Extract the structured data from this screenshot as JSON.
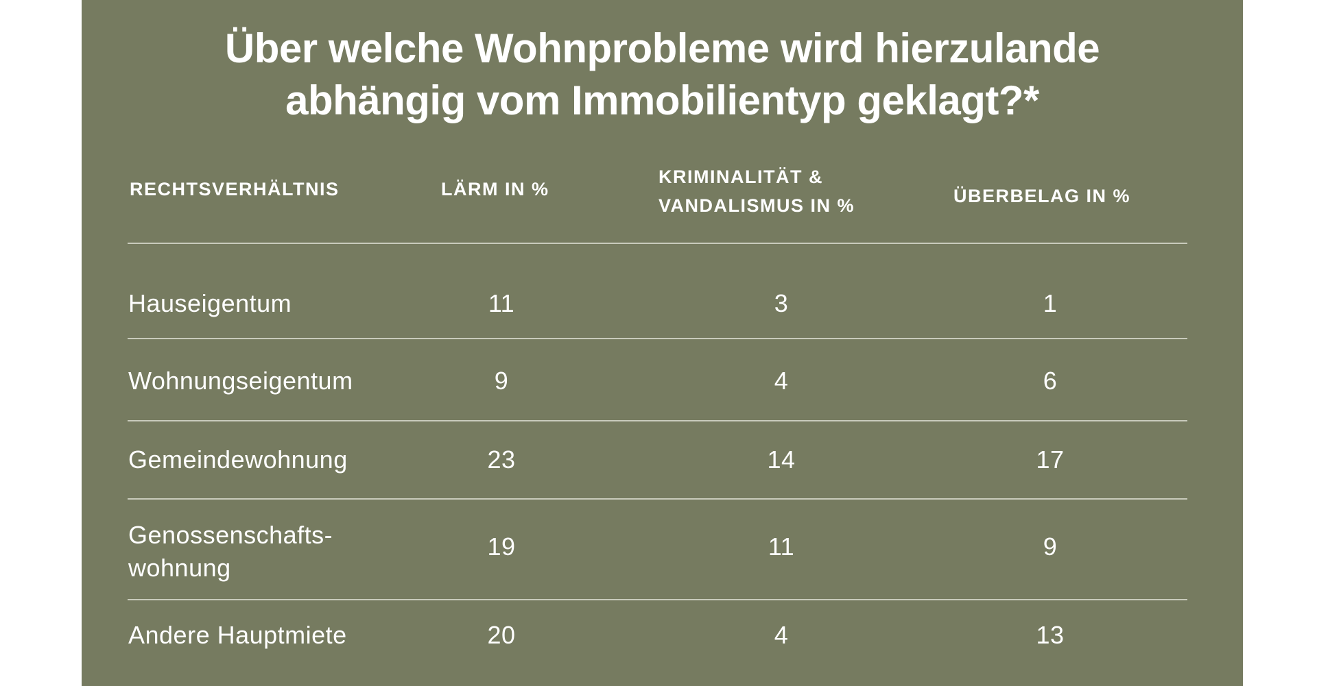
{
  "title": [
    "Über welche Wohnprobleme wird hierzulande",
    "abhängig vom Immobilientyp geklagt?*"
  ],
  "table": {
    "header": [
      "RECHTSVERHÄLTNIS",
      "LÄRM IN %",
      "KRIMINALITÄT & VANDALISMUS IN %",
      "ÜBERBELAG IN %"
    ],
    "rows": [
      [
        "Hauseigentum",
        11,
        3,
        1
      ],
      [
        "Wohnungseigentum",
        9,
        4,
        6
      ],
      [
        "Gemeindewohnung",
        23,
        14,
        17
      ],
      [
        "Genossenschafts-wohnung",
        19,
        11,
        9
      ],
      [
        "Andere Hauptmiete",
        20,
        4,
        13
      ]
    ]
  }
}
